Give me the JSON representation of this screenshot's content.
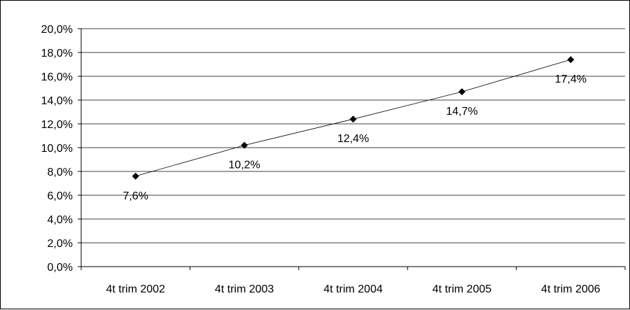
{
  "chart_data": {
    "type": "line",
    "categories": [
      "4t trim 2002",
      "4t trim 2003",
      "4t trim 2004",
      "4t trim 2005",
      "4t trim 2006"
    ],
    "values": [
      7.6,
      10.2,
      12.4,
      14.7,
      17.4
    ],
    "data_labels": [
      "7,6%",
      "10,2%",
      "12,4%",
      "14,7%",
      "17,4%"
    ],
    "ylim": [
      0,
      20
    ],
    "y_ticks": [
      "0,0%",
      "2,0%",
      "4,0%",
      "6,0%",
      "8,0%",
      "10,0%",
      "12,0%",
      "14,0%",
      "16,0%",
      "18,0%",
      "20,0%"
    ],
    "grid": true,
    "legend": false,
    "line_color": "#000000",
    "marker": "diamond"
  }
}
